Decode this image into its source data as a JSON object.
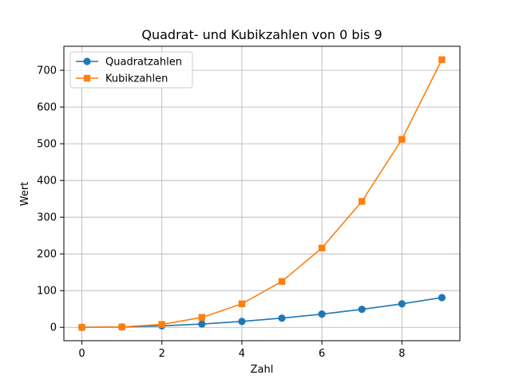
{
  "chart_data": {
    "type": "line",
    "title": "Quadrat- und Kubikzahlen von 0 bis 9",
    "xlabel": "Zahl",
    "ylabel": "Wert",
    "x": [
      0,
      1,
      2,
      3,
      4,
      5,
      6,
      7,
      8,
      9
    ],
    "xlim": [
      -0.45,
      9.45
    ],
    "ylim": [
      -36.45,
      765.45
    ],
    "xticks": [
      0,
      2,
      4,
      6,
      8
    ],
    "yticks": [
      0,
      100,
      200,
      300,
      400,
      500,
      600,
      700
    ],
    "grid": true,
    "legend_position": "top-left",
    "series": [
      {
        "name": "Quadratzahlen",
        "values": [
          0,
          1,
          4,
          9,
          16,
          25,
          36,
          49,
          64,
          81
        ],
        "color": "#1f77b4",
        "marker": "circle"
      },
      {
        "name": "Kubikzahlen",
        "values": [
          0,
          1,
          8,
          27,
          64,
          125,
          216,
          343,
          512,
          729
        ],
        "color": "#ff7f0e",
        "marker": "square"
      }
    ]
  }
}
